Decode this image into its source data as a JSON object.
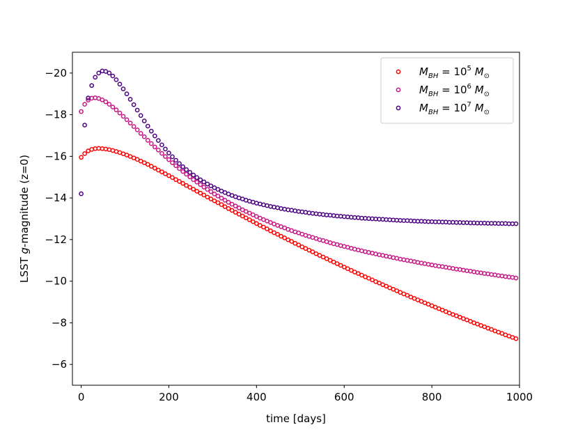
{
  "chart_data": {
    "type": "scatter",
    "title": "",
    "xlabel": "time [days]",
    "ylabel_prefix": "LSST ",
    "ylabel_var": "g",
    "ylabel_suffix": "-magnitude (z=0)",
    "xlim": [
      -20,
      1000
    ],
    "ylim": [
      -5,
      -21
    ],
    "y_inverted": true,
    "grid": false,
    "legend_placement": "top-right",
    "x_ticks": [
      {
        "value": 0,
        "label": "0"
      },
      {
        "value": 200,
        "label": "200"
      },
      {
        "value": 400,
        "label": "400"
      },
      {
        "value": 600,
        "label": "600"
      },
      {
        "value": 800,
        "label": "800"
      },
      {
        "value": 1000,
        "label": "1000"
      }
    ],
    "y_ticks": [
      {
        "value": -6,
        "label": "−6"
      },
      {
        "value": -8,
        "label": "−8"
      },
      {
        "value": -10,
        "label": "−10"
      },
      {
        "value": -12,
        "label": "−12"
      },
      {
        "value": -14,
        "label": "−14"
      },
      {
        "value": -16,
        "label": "−16"
      },
      {
        "value": -18,
        "label": "−18"
      },
      {
        "value": -20,
        "label": "−20"
      }
    ],
    "x": [
      0,
      8,
      16,
      24,
      32,
      40,
      48,
      56,
      64,
      72,
      80,
      88,
      96,
      104,
      112,
      120,
      128,
      136,
      144,
      152,
      160,
      168,
      176,
      184,
      192,
      200,
      208,
      216,
      224,
      232,
      240,
      248,
      256,
      264,
      272,
      280,
      288,
      296,
      304,
      312,
      320,
      328,
      336,
      344,
      352,
      360,
      368,
      376,
      384,
      392,
      400,
      408,
      416,
      424,
      432,
      440,
      448,
      456,
      464,
      472,
      480,
      488,
      496,
      504,
      512,
      520,
      528,
      536,
      544,
      552,
      560,
      568,
      576,
      584,
      592,
      600,
      608,
      616,
      624,
      632,
      640,
      648,
      656,
      664,
      672,
      680,
      688,
      696,
      704,
      712,
      720,
      728,
      736,
      744,
      752,
      760,
      768,
      776,
      784,
      792,
      800,
      808,
      816,
      824,
      832,
      840,
      848,
      856,
      864,
      872,
      880,
      888,
      896,
      904,
      912,
      920,
      928,
      936,
      944,
      952,
      960,
      968,
      976,
      984,
      992
    ],
    "series": [
      {
        "name_base": "M",
        "name_sub": "BH",
        "name_eq": " = 10",
        "name_exp": "5",
        "name_unit": " M",
        "name_unit_sub": "⊙",
        "color": "#ff0000",
        "values": [
          -15.95,
          -16.13,
          -16.26,
          -16.33,
          -16.37,
          -16.38,
          -16.37,
          -16.35,
          -16.32,
          -16.28,
          -16.23,
          -16.18,
          -16.12,
          -16.06,
          -15.99,
          -15.92,
          -15.85,
          -15.77,
          -15.69,
          -15.61,
          -15.52,
          -15.43,
          -15.34,
          -15.25,
          -15.16,
          -15.07,
          -14.98,
          -14.88,
          -14.79,
          -14.7,
          -14.6,
          -14.51,
          -14.42,
          -14.32,
          -14.23,
          -14.14,
          -14.04,
          -13.95,
          -13.86,
          -13.77,
          -13.68,
          -13.58,
          -13.49,
          -13.4,
          -13.31,
          -13.22,
          -13.13,
          -13.04,
          -12.95,
          -12.86,
          -12.77,
          -12.68,
          -12.6,
          -12.51,
          -12.42,
          -12.33,
          -12.25,
          -12.16,
          -12.08,
          -11.99,
          -11.91,
          -11.82,
          -11.74,
          -11.65,
          -11.57,
          -11.49,
          -11.41,
          -11.32,
          -11.24,
          -11.16,
          -11.08,
          -11.0,
          -10.92,
          -10.84,
          -10.76,
          -10.68,
          -10.6,
          -10.52,
          -10.44,
          -10.37,
          -10.29,
          -10.21,
          -10.14,
          -10.06,
          -9.98,
          -9.91,
          -9.83,
          -9.76,
          -9.68,
          -9.61,
          -9.54,
          -9.46,
          -9.39,
          -9.32,
          -9.24,
          -9.17,
          -9.1,
          -9.03,
          -8.96,
          -8.89,
          -8.82,
          -8.75,
          -8.68,
          -8.61,
          -8.54,
          -8.47,
          -8.4,
          -8.34,
          -8.27,
          -8.2,
          -8.14,
          -8.07,
          -8.0,
          -7.94,
          -7.87,
          -7.81,
          -7.74,
          -7.68,
          -7.61,
          -7.55,
          -7.49,
          -7.42,
          -7.36,
          -7.3,
          -7.24
        ]
      },
      {
        "name_base": "M",
        "name_sub": "BH",
        "name_eq": " = 10",
        "name_exp": "6",
        "name_unit": " M",
        "name_unit_sub": "⊙",
        "color": "#c71585",
        "values": [
          -18.15,
          -18.5,
          -18.7,
          -18.79,
          -18.81,
          -18.78,
          -18.71,
          -18.62,
          -18.5,
          -18.37,
          -18.23,
          -18.08,
          -17.92,
          -17.76,
          -17.6,
          -17.43,
          -17.27,
          -17.1,
          -16.94,
          -16.77,
          -16.61,
          -16.45,
          -16.3,
          -16.14,
          -15.99,
          -15.84,
          -15.69,
          -15.55,
          -15.41,
          -15.27,
          -15.14,
          -15.01,
          -14.88,
          -14.76,
          -14.64,
          -14.52,
          -14.41,
          -14.3,
          -14.19,
          -14.09,
          -13.99,
          -13.89,
          -13.79,
          -13.7,
          -13.61,
          -13.52,
          -13.43,
          -13.35,
          -13.27,
          -13.19,
          -13.11,
          -13.03,
          -12.96,
          -12.89,
          -12.82,
          -12.75,
          -12.68,
          -12.62,
          -12.56,
          -12.49,
          -12.43,
          -12.37,
          -12.32,
          -12.26,
          -12.2,
          -12.15,
          -12.1,
          -12.05,
          -11.99,
          -11.95,
          -11.9,
          -11.85,
          -11.8,
          -11.76,
          -11.71,
          -11.67,
          -11.63,
          -11.58,
          -11.54,
          -11.5,
          -11.46,
          -11.42,
          -11.38,
          -11.35,
          -11.31,
          -11.27,
          -11.24,
          -11.2,
          -11.17,
          -11.13,
          -11.1,
          -11.06,
          -11.03,
          -11.0,
          -10.97,
          -10.94,
          -10.9,
          -10.87,
          -10.84,
          -10.81,
          -10.78,
          -10.75,
          -10.72,
          -10.7,
          -10.67,
          -10.64,
          -10.61,
          -10.58,
          -10.56,
          -10.53,
          -10.5,
          -10.48,
          -10.45,
          -10.42,
          -10.4,
          -10.37,
          -10.35,
          -10.32,
          -10.3,
          -10.27,
          -10.25,
          -10.22,
          -10.2,
          -10.18,
          -10.15
        ]
      },
      {
        "name_base": "M",
        "name_sub": "BH",
        "name_eq": " = 10",
        "name_exp": "7",
        "name_unit": " M",
        "name_unit_sub": "⊙",
        "color": "#4b0082",
        "values": [
          -14.2,
          -17.5,
          -18.8,
          -19.4,
          -19.8,
          -20.0,
          -20.1,
          -20.08,
          -20.0,
          -19.86,
          -19.68,
          -19.47,
          -19.24,
          -19.0,
          -18.74,
          -18.48,
          -18.22,
          -17.96,
          -17.7,
          -17.45,
          -17.21,
          -16.98,
          -16.76,
          -16.55,
          -16.35,
          -16.16,
          -15.98,
          -15.81,
          -15.65,
          -15.5,
          -15.36,
          -15.23,
          -15.1,
          -14.98,
          -14.87,
          -14.77,
          -14.67,
          -14.58,
          -14.49,
          -14.41,
          -14.33,
          -14.26,
          -14.19,
          -14.12,
          -14.06,
          -14.0,
          -13.95,
          -13.89,
          -13.84,
          -13.8,
          -13.75,
          -13.71,
          -13.67,
          -13.63,
          -13.59,
          -13.56,
          -13.53,
          -13.49,
          -13.46,
          -13.43,
          -13.41,
          -13.38,
          -13.35,
          -13.33,
          -13.31,
          -13.28,
          -13.26,
          -13.24,
          -13.22,
          -13.2,
          -13.18,
          -13.17,
          -13.15,
          -13.13,
          -13.12,
          -13.1,
          -13.09,
          -13.07,
          -13.06,
          -13.05,
          -13.03,
          -13.02,
          -13.01,
          -13.0,
          -12.99,
          -12.98,
          -12.97,
          -12.96,
          -12.95,
          -12.94,
          -12.93,
          -12.92,
          -12.91,
          -12.91,
          -12.9,
          -12.89,
          -12.88,
          -12.88,
          -12.87,
          -12.86,
          -12.86,
          -12.85,
          -12.85,
          -12.84,
          -12.84,
          -12.83,
          -12.83,
          -12.82,
          -12.82,
          -12.81,
          -12.81,
          -12.8,
          -12.8,
          -12.79,
          -12.79,
          -12.79,
          -12.78,
          -12.78,
          -12.78,
          -12.77,
          -12.77,
          -12.77,
          -12.76,
          -12.76,
          -12.76
        ]
      }
    ]
  }
}
